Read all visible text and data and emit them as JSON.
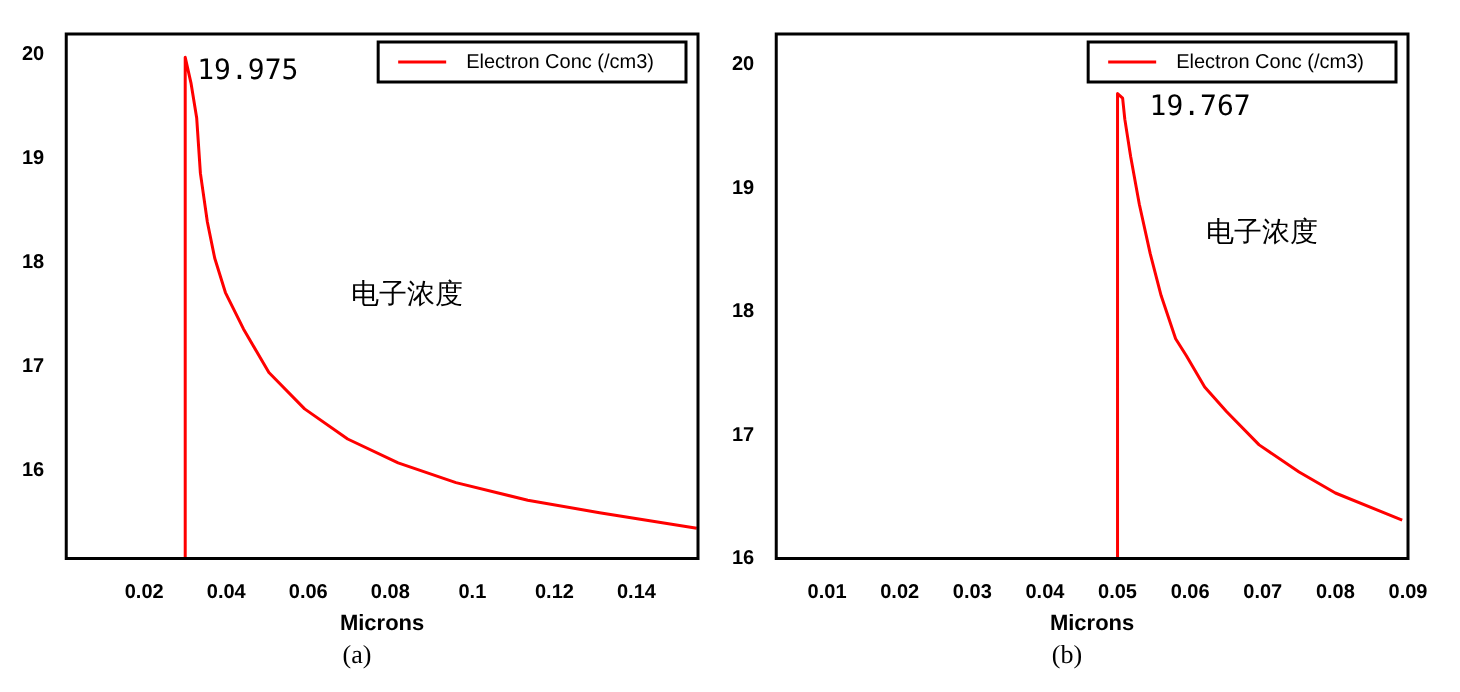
{
  "chart_data": [
    {
      "type": "line",
      "title": "(a)",
      "xlabel": "Microns",
      "xlim": [
        0.001,
        0.155
      ],
      "ylim": [
        15.15,
        20.2
      ],
      "xticks": [
        0.02,
        0.04,
        0.06,
        0.08,
        0.1,
        0.12,
        0.14
      ],
      "yticks": [
        16,
        17,
        18,
        19,
        20
      ],
      "grid": false,
      "legend": "top right",
      "marker": "none",
      "line_style": "solid",
      "series": [
        {
          "name": "Electron Conc (/cm3)",
          "color": "#ff0000",
          "x": [
            0.03,
            0.03,
            0.0314,
            0.0328,
            0.0337,
            0.0354,
            0.0372,
            0.0398,
            0.0442,
            0.0504,
            0.0591,
            0.0696,
            0.0819,
            0.096,
            0.1135,
            0.131,
            0.1547
          ],
          "values": [
            15.15,
            19.975,
            19.73,
            19.39,
            18.86,
            18.39,
            18.04,
            17.71,
            17.36,
            16.94,
            16.59,
            16.3,
            16.07,
            15.88,
            15.71,
            15.59,
            15.44
          ]
        }
      ],
      "annotations": [
        {
          "text": "19.975",
          "x": 0.03,
          "y": 19.975
        },
        "电子浓度"
      ]
    },
    {
      "type": "line",
      "title": "(b)",
      "xlabel": "Microns",
      "xlim": [
        0.003,
        0.09
      ],
      "ylim": [
        16,
        20.25
      ],
      "xticks": [
        0.01,
        0.02,
        0.03,
        0.04,
        0.05,
        0.06,
        0.07,
        0.08,
        0.09
      ],
      "yticks": [
        16,
        17,
        18,
        19,
        20
      ],
      "grid": false,
      "legend": "top right",
      "marker": "none",
      "line_style": "solid",
      "series": [
        {
          "name": "Electron Conc (/cm3)",
          "color": "#ff0000",
          "x": [
            0.05,
            0.05,
            0.0507,
            0.051,
            0.0518,
            0.053,
            0.0545,
            0.056,
            0.058,
            0.0595,
            0.062,
            0.065,
            0.0695,
            0.075,
            0.08,
            0.0892
          ],
          "values": [
            16,
            19.767,
            19.73,
            19.56,
            19.26,
            18.87,
            18.47,
            18.13,
            17.78,
            17.64,
            17.39,
            17.19,
            16.92,
            16.7,
            16.53,
            16.31
          ]
        }
      ],
      "annotations": [
        {
          "text": "19.767",
          "x": 0.05,
          "y": 19.767
        },
        "电子浓度"
      ]
    }
  ]
}
